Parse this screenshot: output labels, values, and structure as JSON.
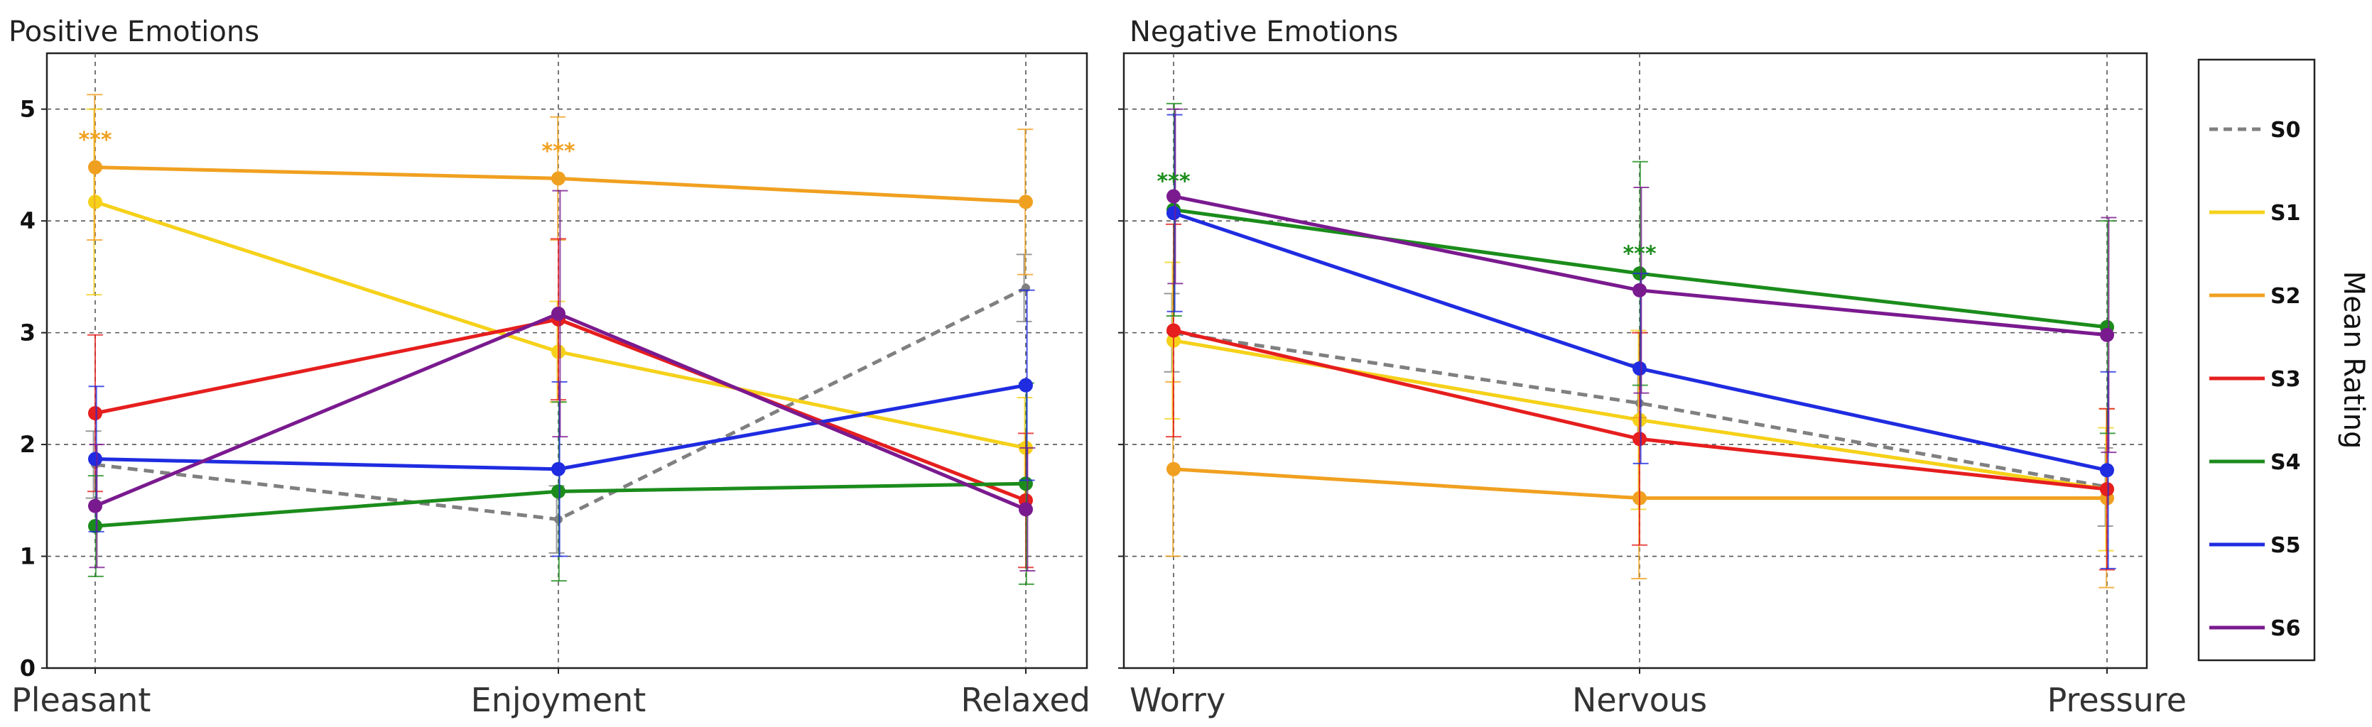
{
  "colors": {
    "S0": "#808080",
    "S1": "#f5d11a",
    "S2": "#f0a020",
    "S3": "#e61e1e",
    "S4": "#1b8c1b",
    "S5": "#1f2ce0",
    "S6": "#7a1a8f"
  },
  "chart_data": [
    {
      "type": "line",
      "title": "Positive Emotions",
      "categories": [
        "Pleasant",
        "Enjoyment",
        "Relaxed"
      ],
      "ylim": [
        0,
        5.5
      ],
      "yticks": [
        "0",
        "1",
        "2",
        "3",
        "4",
        "5"
      ],
      "grid": true,
      "series": [
        {
          "name": "S0",
          "values": [
            1.82,
            1.33,
            3.4
          ],
          "err": [
            0.3,
            0.3,
            0.3
          ],
          "dashed": true
        },
        {
          "name": "S1",
          "values": [
            4.17,
            2.83,
            1.97
          ],
          "err": [
            0.83,
            0.45,
            0.45
          ]
        },
        {
          "name": "S2",
          "values": [
            4.48,
            4.38,
            4.17
          ],
          "err": [
            0.65,
            0.55,
            0.65
          ]
        },
        {
          "name": "S3",
          "values": [
            2.28,
            3.12,
            1.5
          ],
          "err": [
            0.7,
            0.72,
            0.6
          ]
        },
        {
          "name": "S4",
          "values": [
            1.27,
            1.58,
            1.65
          ],
          "err": [
            0.45,
            0.8,
            0.9
          ]
        },
        {
          "name": "S5",
          "values": [
            1.87,
            1.78,
            2.53
          ],
          "err": [
            0.65,
            0.78,
            0.85
          ]
        },
        {
          "name": "S6",
          "values": [
            1.45,
            3.17,
            1.42
          ],
          "err": [
            0.55,
            1.1,
            0.55
          ]
        }
      ],
      "annotations": [
        {
          "text": "***",
          "category": "Pleasant",
          "y": 4.75,
          "color": "#f0a020"
        },
        {
          "text": "***",
          "category": "Enjoyment",
          "y": 4.65,
          "color": "#f0a020"
        }
      ]
    },
    {
      "type": "line",
      "title": "Negative Emotions",
      "categories": [
        "Worry",
        "Nervous",
        "Pressure"
      ],
      "ylim": [
        0,
        5.5
      ],
      "grid": true,
      "series": [
        {
          "name": "S0",
          "values": [
            3.0,
            2.37,
            1.62
          ],
          "err": [
            0.35,
            0.35,
            0.35
          ],
          "dashed": true
        },
        {
          "name": "S1",
          "values": [
            2.93,
            2.22,
            1.6
          ],
          "err": [
            0.7,
            0.8,
            0.55
          ]
        },
        {
          "name": "S2",
          "values": [
            1.78,
            1.52,
            1.52
          ],
          "err": [
            0.78,
            0.72,
            0.8
          ]
        },
        {
          "name": "S3",
          "values": [
            3.02,
            2.05,
            1.6
          ],
          "err": [
            0.95,
            0.95,
            0.72
          ]
        },
        {
          "name": "S4",
          "values": [
            4.1,
            3.53,
            3.05
          ],
          "err": [
            0.95,
            1.0,
            0.95
          ]
        },
        {
          "name": "S5",
          "values": [
            4.07,
            2.68,
            1.77
          ],
          "err": [
            0.88,
            0.85,
            0.88
          ]
        },
        {
          "name": "S6",
          "values": [
            4.22,
            3.38,
            2.98
          ],
          "err": [
            0.78,
            0.92,
            1.05
          ]
        }
      ],
      "annotations": [
        {
          "text": "***",
          "category": "Worry",
          "y": 4.38,
          "color": "#1b8c1b"
        },
        {
          "text": "***",
          "category": "Nervous",
          "y": 3.73,
          "color": "#1b8c1b"
        }
      ]
    }
  ],
  "legend": {
    "items": [
      "S0",
      "S1",
      "S2",
      "S3",
      "S4",
      "S5",
      "S6"
    ],
    "ylabel": "Mean Rating"
  }
}
